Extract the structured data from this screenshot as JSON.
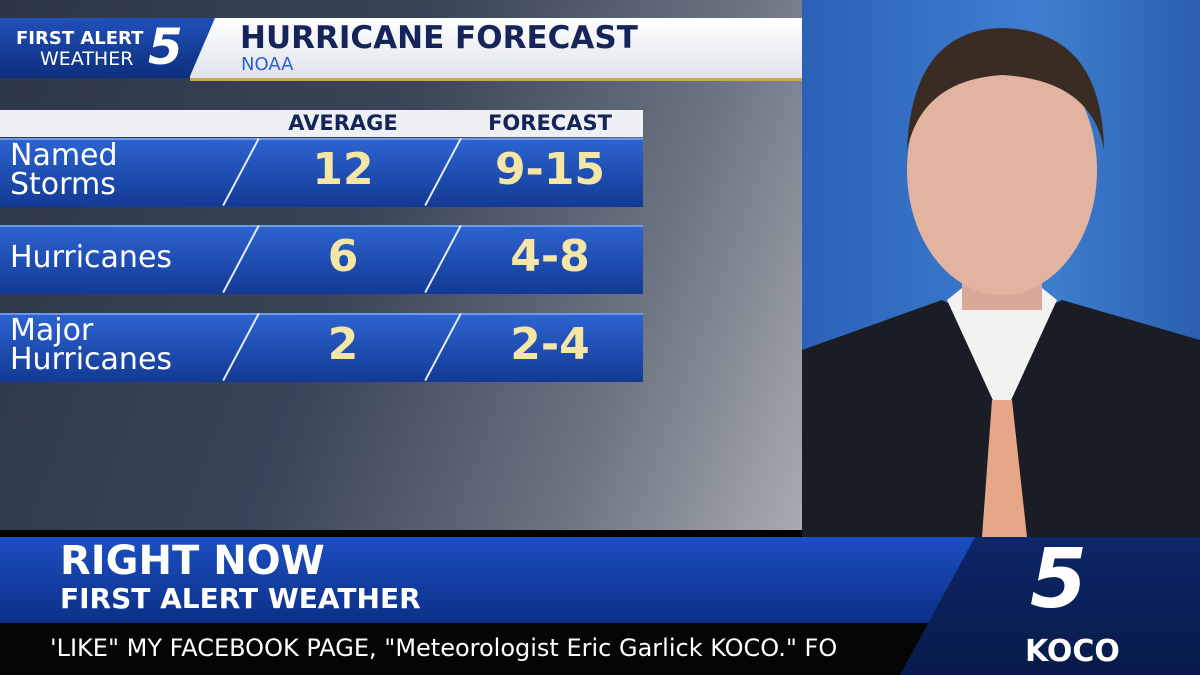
{
  "logo": {
    "line1": "FIRST ALERT",
    "line2": "WEATHER",
    "number": "5"
  },
  "header": {
    "title": "HURRICANE FORECAST",
    "subtitle": "NOAA"
  },
  "table": {
    "columns": [
      "AVERAGE",
      "FORECAST"
    ],
    "rows": [
      {
        "label_lines": [
          "Named",
          "Storms"
        ],
        "average": "12",
        "forecast": "9-15"
      },
      {
        "label_lines": [
          "Hurricanes"
        ],
        "average": "6",
        "forecast": "4-8"
      },
      {
        "label_lines": [
          "Major",
          "Hurricanes"
        ],
        "average": "2",
        "forecast": "2-4"
      }
    ]
  },
  "lower_third": {
    "headline": "RIGHT NOW",
    "subheadline": "FIRST ALERT WEATHER"
  },
  "ticker": {
    "text": "'LIKE\" MY FACEBOOK PAGE, \"Meteorologist Eric Garlick KOCO.\"  FO"
  },
  "station": {
    "number": "5",
    "name": "KOCO"
  }
}
